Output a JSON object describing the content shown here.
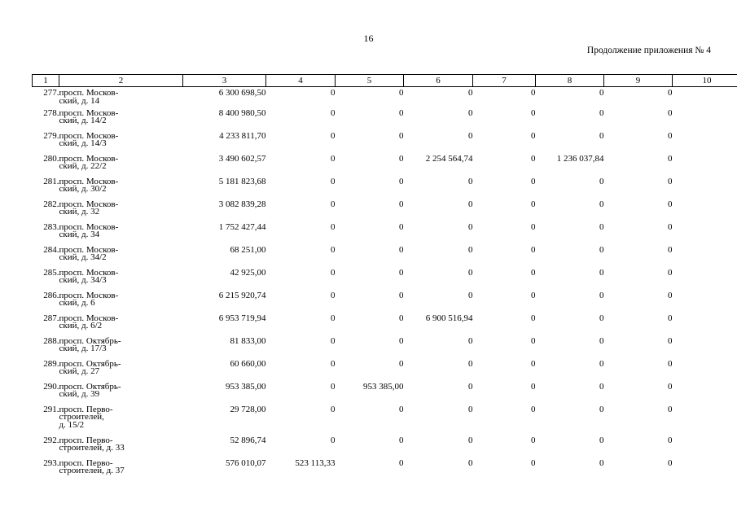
{
  "page_number": "16",
  "continuation_label": "Продолжение приложения № 4",
  "column_headers": [
    "1",
    "2",
    "3",
    "4",
    "5",
    "6",
    "7",
    "8",
    "9",
    "10"
  ],
  "rows": [
    {
      "n": "277.",
      "addr1": "просп. Москов-",
      "addr2": "ский, д. 14",
      "addr3": "",
      "c3": "6 300 698,50",
      "c4": "0",
      "c5": "0",
      "c6": "0",
      "c7": "0",
      "c8": "0",
      "c9": "0",
      "c10": "0"
    },
    {
      "n": "278.",
      "addr1": "просп. Москов-",
      "addr2": "ский, д. 14/2",
      "addr3": "",
      "c3": "8 400 980,50",
      "c4": "0",
      "c5": "0",
      "c6": "0",
      "c7": "0",
      "c8": "0",
      "c9": "0",
      "c10": "0"
    },
    {
      "n": "279.",
      "addr1": "просп. Москов-",
      "addr2": "ский, д. 14/3",
      "addr3": "",
      "c3": "4 233 811,70",
      "c4": "0",
      "c5": "0",
      "c6": "0",
      "c7": "0",
      "c8": "0",
      "c9": "0",
      "c10": "0"
    },
    {
      "n": "280.",
      "addr1": "просп. Москов-",
      "addr2": "ский, д. 22/2",
      "addr3": "",
      "c3": "3 490 602,57",
      "c4": "0",
      "c5": "0",
      "c6": "2 254 564,74",
      "c7": "0",
      "c8": "1 236 037,84",
      "c9": "0",
      "c10": "0"
    },
    {
      "n": "281.",
      "addr1": "просп. Москов-",
      "addr2": "ский, д. 30/2",
      "addr3": "",
      "c3": "5 181 823,68",
      "c4": "0",
      "c5": "0",
      "c6": "0",
      "c7": "0",
      "c8": "0",
      "c9": "0",
      "c10": "0"
    },
    {
      "n": "282.",
      "addr1": "просп. Москов-",
      "addr2": "ский, д. 32",
      "addr3": "",
      "c3": "3 082 839,28",
      "c4": "0",
      "c5": "0",
      "c6": "0",
      "c7": "0",
      "c8": "0",
      "c9": "0",
      "c10": "0"
    },
    {
      "n": "283.",
      "addr1": "просп. Москов-",
      "addr2": "ский, д. 34",
      "addr3": "",
      "c3": "1 752 427,44",
      "c4": "0",
      "c5": "0",
      "c6": "0",
      "c7": "0",
      "c8": "0",
      "c9": "0",
      "c10": "0"
    },
    {
      "n": "284.",
      "addr1": "просп. Москов-",
      "addr2": "ский, д. 34/2",
      "addr3": "",
      "c3": "68 251,00",
      "c4": "0",
      "c5": "0",
      "c6": "0",
      "c7": "0",
      "c8": "0",
      "c9": "0",
      "c10": "0"
    },
    {
      "n": "285.",
      "addr1": "просп. Москов-",
      "addr2": "ский, д. 34/3",
      "addr3": "",
      "c3": "42 925,00",
      "c4": "0",
      "c5": "0",
      "c6": "0",
      "c7": "0",
      "c8": "0",
      "c9": "0",
      "c10": "0"
    },
    {
      "n": "286.",
      "addr1": "просп. Москов-",
      "addr2": "ский, д. 6",
      "addr3": "",
      "c3": "6 215 920,74",
      "c4": "0",
      "c5": "0",
      "c6": "0",
      "c7": "0",
      "c8": "0",
      "c9": "0",
      "c10": "0"
    },
    {
      "n": "287.",
      "addr1": "просп. Москов-",
      "addr2": "ский, д. 6/2",
      "addr3": "",
      "c3": "6 953 719,94",
      "c4": "0",
      "c5": "0",
      "c6": "6 900 516,94",
      "c7": "0",
      "c8": "0",
      "c9": "0",
      "c10": "0"
    },
    {
      "n": "288.",
      "addr1": "просп. Октябрь-",
      "addr2": "ский, д. 17/3",
      "addr3": "",
      "c3": "81 833,00",
      "c4": "0",
      "c5": "0",
      "c6": "0",
      "c7": "0",
      "c8": "0",
      "c9": "0",
      "c10": "0"
    },
    {
      "n": "289.",
      "addr1": "просп. Октябрь-",
      "addr2": "ский, д. 27",
      "addr3": "",
      "c3": "60 660,00",
      "c4": "0",
      "c5": "0",
      "c6": "0",
      "c7": "0",
      "c8": "0",
      "c9": "0",
      "c10": "0"
    },
    {
      "n": "290.",
      "addr1": "просп. Октябрь-",
      "addr2": "ский, д. 39",
      "addr3": "",
      "c3": "953 385,00",
      "c4": "0",
      "c5": "953 385,00",
      "c6": "0",
      "c7": "0",
      "c8": "0",
      "c9": "0",
      "c10": "0"
    },
    {
      "n": "291.",
      "addr1": "просп. Перво-",
      "addr2": "строителей,",
      "addr3": "д. 15/2",
      "c3": "29 728,00",
      "c4": "0",
      "c5": "0",
      "c6": "0",
      "c7": "0",
      "c8": "0",
      "c9": "0",
      "c10": "0"
    },
    {
      "n": "292.",
      "addr1": "просп. Перво-",
      "addr2": "строителей, д. 33",
      "addr3": "",
      "c3": "52 896,74",
      "c4": "0",
      "c5": "0",
      "c6": "0",
      "c7": "0",
      "c8": "0",
      "c9": "0",
      "c10": "0"
    },
    {
      "n": "293.",
      "addr1": "просп. Перво-",
      "addr2": "строителей, д. 37",
      "addr3": "",
      "c3": "576 010,07",
      "c4": "523 113,33",
      "c5": "0",
      "c6": "0",
      "c7": "0",
      "c8": "0",
      "c9": "0",
      "c10": "0"
    }
  ]
}
